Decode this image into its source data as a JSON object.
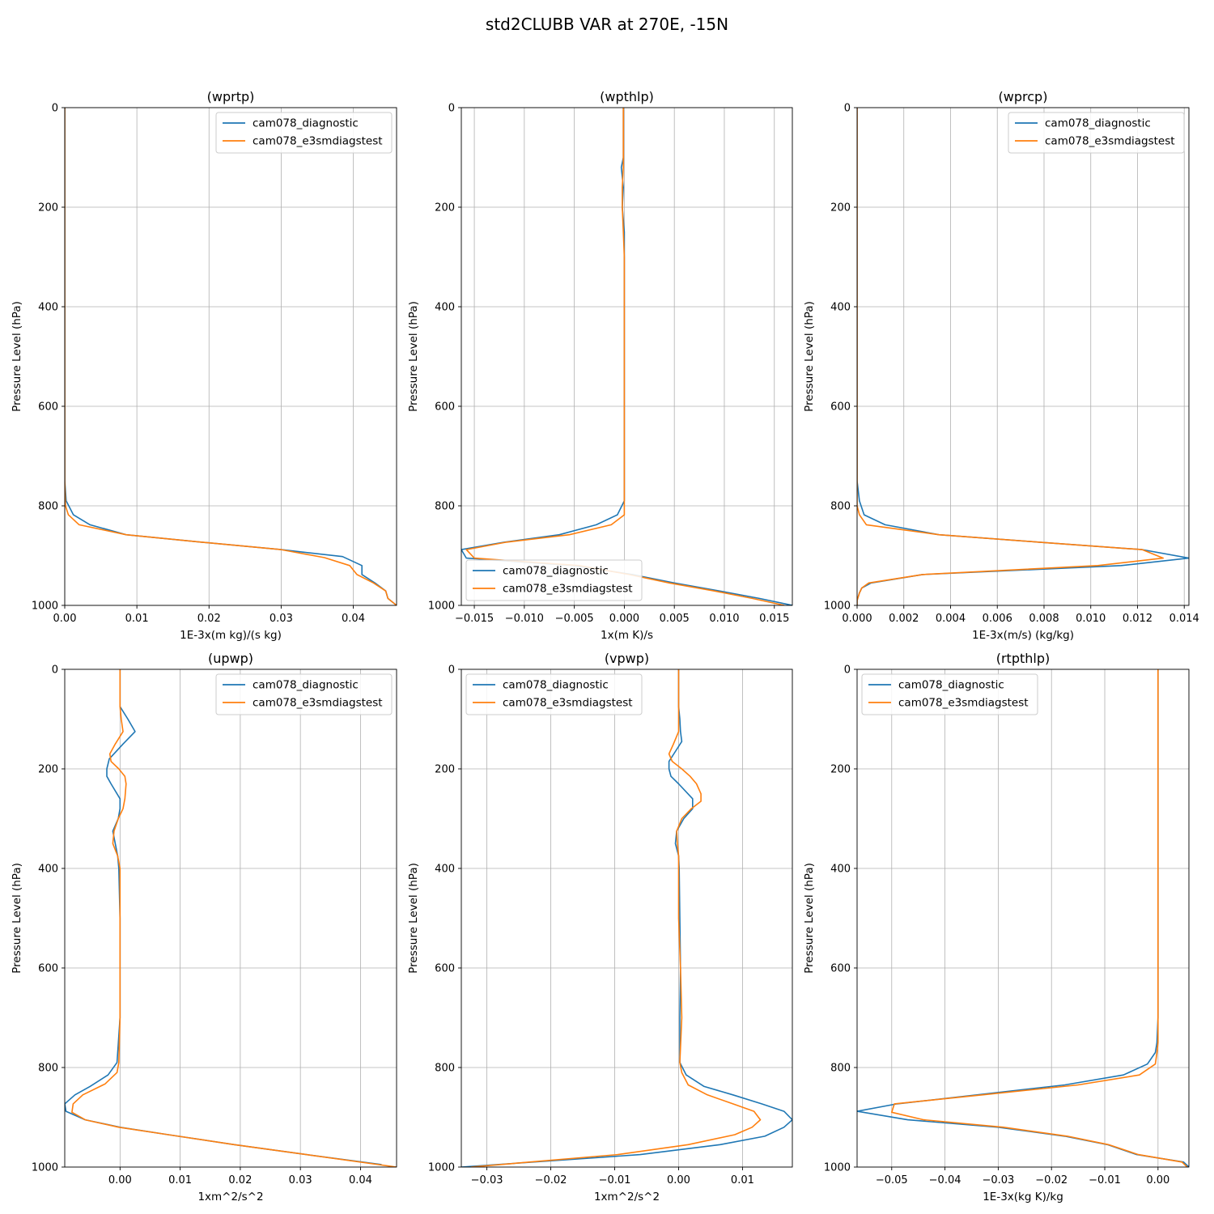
{
  "figure": {
    "title": "std2CLUBB VAR at 270E, -15N"
  },
  "colors": {
    "diagnostic": "#1f77b4",
    "e3smdiagstest": "#ff7f0e",
    "grid": "#b0b0b0"
  },
  "chart_data": [
    {
      "type": "line",
      "title": "(wprtp)",
      "xlabel": "1E-3x(m kg)/(s kg)",
      "ylabel": "Pressure Level (hPa)",
      "xlim": [
        0.0,
        0.046
      ],
      "ylim": [
        1000,
        0
      ],
      "xticks": [
        0.0,
        0.01,
        0.02,
        0.03,
        0.04
      ],
      "xtick_labels": [
        "0.00",
        "0.01",
        "0.02",
        "0.03",
        "0.04"
      ],
      "yticks": [
        0,
        200,
        400,
        600,
        800,
        1000
      ],
      "ytick_labels": [
        "0",
        "200",
        "400",
        "600",
        "800",
        "1000"
      ],
      "grid": true,
      "legend": "upper-right",
      "series": [
        {
          "name": "cam078_diagnostic",
          "color": "#1f77b4",
          "y": [
            0,
            100,
            300,
            600,
            750,
            790,
            818,
            838,
            858,
            873,
            888,
            902,
            920,
            938,
            955,
            971,
            986,
            1000
          ],
          "x": [
            0.0,
            0.0,
            0.0,
            0.0,
            0.0,
            0.0002,
            0.0012,
            0.0035,
            0.0085,
            0.019,
            0.03,
            0.0385,
            0.0412,
            0.0412,
            0.043,
            0.0445,
            0.0448,
            0.046
          ]
        },
        {
          "name": "cam078_e3smdiagstest",
          "color": "#ff7f0e",
          "y": [
            0,
            100,
            300,
            600,
            750,
            800,
            818,
            838,
            858,
            873,
            888,
            904,
            920,
            938,
            955,
            971,
            986,
            1000
          ],
          "x": [
            0.0,
            0.0,
            0.0,
            0.0,
            0.0,
            0.0001,
            0.0005,
            0.002,
            0.0085,
            0.019,
            0.03,
            0.036,
            0.0395,
            0.0405,
            0.0428,
            0.0445,
            0.0448,
            0.046
          ]
        }
      ]
    },
    {
      "type": "line",
      "title": "(wpthlp)",
      "xlabel": "1x(m K)/s",
      "ylabel": "Pressure Level (hPa)",
      "xlim": [
        -0.0163,
        0.0168
      ],
      "ylim": [
        1000,
        0
      ],
      "xticks": [
        -0.015,
        -0.01,
        -0.005,
        0.0,
        0.005,
        0.01,
        0.015
      ],
      "xtick_labels": [
        "−0.015",
        "−0.010",
        "−0.005",
        "0.000",
        "0.005",
        "0.010",
        "0.015"
      ],
      "yticks": [
        0,
        200,
        400,
        600,
        800,
        1000
      ],
      "ytick_labels": [
        "0",
        "200",
        "400",
        "600",
        "800",
        "1000"
      ],
      "grid": true,
      "legend": "lower-left",
      "series": [
        {
          "name": "cam078_diagnostic",
          "color": "#1f77b4",
          "y": [
            0,
            100,
            120,
            160,
            200,
            250,
            300,
            400,
            600,
            790,
            818,
            838,
            858,
            873,
            888,
            905,
            920,
            938,
            955,
            971,
            986,
            1000
          ],
          "x": [
            -0.0001,
            -0.0001,
            -0.0003,
            -0.0001,
            -0.0002,
            0.0,
            0.0,
            0.0,
            0.0,
            0.0,
            -0.0007,
            -0.0028,
            -0.0065,
            -0.012,
            -0.0163,
            -0.0158,
            -0.005,
            0.0008,
            0.005,
            0.0095,
            0.0135,
            0.0168
          ]
        },
        {
          "name": "cam078_e3smdiagstest",
          "color": "#ff7f0e",
          "y": [
            0,
            100,
            120,
            160,
            200,
            250,
            300,
            400,
            600,
            790,
            818,
            838,
            858,
            873,
            888,
            905,
            920,
            938,
            955,
            971,
            986,
            1000
          ],
          "x": [
            -0.0001,
            -0.0001,
            -0.0001,
            -0.0002,
            -0.0002,
            -0.0001,
            0.0,
            0.0,
            0.0,
            0.0,
            0.0,
            -0.0013,
            -0.0055,
            -0.0118,
            -0.0158,
            -0.015,
            -0.0045,
            0.0005,
            0.0045,
            0.009,
            0.0128,
            0.016
          ]
        }
      ]
    },
    {
      "type": "line",
      "title": "(wprcp)",
      "xlabel": "1E-3x(m/s) (kg/kg)",
      "ylabel": "Pressure Level (hPa)",
      "xlim": [
        0.0,
        0.0142
      ],
      "ylim": [
        1000,
        0
      ],
      "xticks": [
        0.0,
        0.002,
        0.004,
        0.006,
        0.008,
        0.01,
        0.012,
        0.014
      ],
      "xtick_labels": [
        "0.000",
        "0.002",
        "0.004",
        "0.006",
        "0.008",
        "0.010",
        "0.012",
        "0.014"
      ],
      "yticks": [
        0,
        200,
        400,
        600,
        800,
        1000
      ],
      "ytick_labels": [
        "0",
        "200",
        "400",
        "600",
        "800",
        "1000"
      ],
      "grid": true,
      "legend": "upper-right",
      "series": [
        {
          "name": "cam078_diagnostic",
          "color": "#1f77b4",
          "y": [
            0,
            300,
            600,
            750,
            790,
            818,
            838,
            858,
            873,
            888,
            905,
            920,
            938,
            955,
            965,
            975,
            990,
            1000
          ],
          "x": [
            0.0,
            0.0,
            0.0,
            0.0,
            0.0001,
            0.0003,
            0.0012,
            0.0035,
            0.0078,
            0.0122,
            0.0142,
            0.0113,
            0.0028,
            0.0006,
            0.0002,
            0.0001,
            0.0,
            0.0
          ]
        },
        {
          "name": "cam078_e3smdiagstest",
          "color": "#ff7f0e",
          "y": [
            0,
            300,
            600,
            750,
            800,
            818,
            838,
            858,
            873,
            888,
            905,
            920,
            938,
            955,
            965,
            975,
            990,
            1000
          ],
          "x": [
            0.0,
            0.0,
            0.0,
            0.0,
            0.0,
            0.0001,
            0.0004,
            0.0035,
            0.0078,
            0.0122,
            0.0131,
            0.0103,
            0.0028,
            0.0005,
            0.0002,
            0.0001,
            0.0,
            0.0
          ]
        }
      ]
    },
    {
      "type": "line",
      "title": "(upwp)",
      "xlabel": "1xm^2/s^2",
      "ylabel": "Pressure Level (hPa)",
      "xlim": [
        -0.0092,
        0.046
      ],
      "ylim": [
        1000,
        0
      ],
      "xticks": [
        0.0,
        0.01,
        0.02,
        0.03,
        0.04
      ],
      "xtick_labels": [
        "0.00",
        "0.01",
        "0.02",
        "0.03",
        "0.04"
      ],
      "yticks": [
        0,
        200,
        400,
        600,
        800,
        1000
      ],
      "ytick_labels": [
        "0",
        "200",
        "400",
        "600",
        "800",
        "1000"
      ],
      "grid": true,
      "legend": "upper-right",
      "series": [
        {
          "name": "cam078_diagnostic",
          "color": "#1f77b4",
          "y": [
            0,
            50,
            75,
            100,
            125,
            150,
            180,
            200,
            215,
            230,
            260,
            280,
            300,
            325,
            350,
            375,
            400,
            500,
            600,
            700,
            790,
            815,
            838,
            855,
            873,
            888,
            905,
            920,
            935,
            955,
            975,
            995
          ],
          "x": [
            0.0,
            0.0,
            0.0,
            0.0013,
            0.0025,
            0.0005,
            -0.0018,
            -0.0022,
            -0.0022,
            -0.0015,
            0.0,
            0.0,
            -0.0003,
            -0.0012,
            -0.0008,
            -0.0004,
            -0.0002,
            0.0,
            0.0,
            0.0,
            -0.0005,
            -0.002,
            -0.005,
            -0.0075,
            -0.0092,
            -0.009,
            -0.0058,
            0.0,
            0.008,
            0.019,
            0.031,
            0.0435
          ]
        },
        {
          "name": "cam078_e3smdiagstest",
          "color": "#ff7f0e",
          "y": [
            0,
            50,
            75,
            100,
            125,
            150,
            170,
            185,
            200,
            215,
            230,
            260,
            280,
            300,
            325,
            350,
            375,
            400,
            500,
            600,
            700,
            790,
            810,
            833,
            855,
            873,
            890,
            905,
            920,
            935,
            955,
            975,
            1000
          ],
          "x": [
            0.0,
            0.0,
            0.0,
            0.0002,
            0.0005,
            -0.0008,
            -0.0017,
            -0.0015,
            -0.0002,
            0.0008,
            0.001,
            0.0008,
            0.0005,
            -0.0003,
            -0.001,
            -0.0012,
            -0.0004,
            0.0,
            0.0,
            0.0,
            0.0,
            -0.0002,
            -0.0005,
            -0.0025,
            -0.0062,
            -0.0078,
            -0.008,
            -0.0058,
            -0.0002,
            0.008,
            0.019,
            0.031,
            0.046
          ]
        }
      ]
    },
    {
      "type": "line",
      "title": "(vpwp)",
      "xlabel": "1xm^2/s^2",
      "ylabel": "Pressure Level (hPa)",
      "xlim": [
        -0.034,
        0.0178
      ],
      "ylim": [
        1000,
        0
      ],
      "xticks": [
        -0.03,
        -0.02,
        -0.01,
        0.0,
        0.01
      ],
      "xtick_labels": [
        "−0.03",
        "−0.02",
        "−0.01",
        "0.00",
        "0.01"
      ],
      "yticks": [
        0,
        200,
        400,
        600,
        800,
        1000
      ],
      "ytick_labels": [
        "0",
        "200",
        "400",
        "600",
        "800",
        "1000"
      ],
      "grid": true,
      "legend": "upper-left",
      "series": [
        {
          "name": "cam078_diagnostic",
          "color": "#1f77b4",
          "y": [
            0,
            50,
            75,
            100,
            125,
            145,
            165,
            185,
            200,
            215,
            230,
            260,
            280,
            300,
            325,
            350,
            375,
            400,
            500,
            600,
            700,
            790,
            815,
            838,
            855,
            873,
            888,
            905,
            920,
            938,
            955,
            975,
            1000
          ],
          "x": [
            0.0,
            0.0,
            0.0,
            0.0002,
            0.0003,
            0.0005,
            -0.0005,
            -0.0015,
            -0.0015,
            -0.0012,
            0.0,
            0.0022,
            0.0022,
            0.0008,
            -0.0003,
            -0.0005,
            0.0,
            0.0001,
            0.0002,
            0.0003,
            0.0002,
            0.0002,
            0.0012,
            0.004,
            0.0085,
            0.013,
            0.0165,
            0.0178,
            0.0165,
            0.0135,
            0.0065,
            -0.006,
            -0.034
          ]
        },
        {
          "name": "cam078_e3smdiagstest",
          "color": "#ff7f0e",
          "y": [
            0,
            50,
            75,
            100,
            125,
            150,
            170,
            185,
            200,
            215,
            230,
            250,
            265,
            280,
            300,
            325,
            350,
            375,
            400,
            500,
            600,
            700,
            790,
            810,
            835,
            855,
            873,
            888,
            905,
            920,
            935,
            955,
            975,
            1000
          ],
          "x": [
            0.0,
            0.0,
            0.0,
            0.0,
            0.0,
            -0.0008,
            -0.0015,
            -0.001,
            0.0005,
            0.0018,
            0.0028,
            0.0035,
            0.0035,
            0.002,
            0.0005,
            -0.0003,
            -0.0002,
            0.0,
            0.0,
            0.0,
            0.0003,
            0.0005,
            0.0002,
            0.0005,
            0.0015,
            0.0045,
            0.0085,
            0.0118,
            0.0128,
            0.0115,
            0.0088,
            0.0015,
            -0.0095,
            -0.0325
          ]
        }
      ]
    },
    {
      "type": "line",
      "title": "(rtpthlp)",
      "xlabel": "1E-3x(kg K)/kg",
      "ylabel": "Pressure Level (hPa)",
      "xlim": [
        -0.0565,
        0.0058
      ],
      "ylim": [
        1000,
        0
      ],
      "xticks": [
        -0.05,
        -0.04,
        -0.03,
        -0.02,
        -0.01,
        0.0
      ],
      "xtick_labels": [
        "−0.05",
        "−0.04",
        "−0.03",
        "−0.02",
        "−0.01",
        "0.00"
      ],
      "yticks": [
        0,
        200,
        400,
        600,
        800,
        1000
      ],
      "ytick_labels": [
        "0",
        "200",
        "400",
        "600",
        "800",
        "1000"
      ],
      "grid": true,
      "legend": "upper-left",
      "series": [
        {
          "name": "cam078_diagnostic",
          "color": "#1f77b4",
          "y": [
            0,
            100,
            300,
            500,
            700,
            750,
            770,
            793,
            815,
            835,
            855,
            873,
            888,
            905,
            920,
            938,
            955,
            975,
            990,
            1000
          ],
          "x": [
            0.0,
            0.0,
            0.0,
            0.0,
            0.0,
            -0.0002,
            -0.0005,
            -0.002,
            -0.0065,
            -0.0175,
            -0.034,
            -0.049,
            -0.0565,
            -0.047,
            -0.03,
            -0.0175,
            -0.0095,
            -0.004,
            0.0048,
            0.0058
          ]
        },
        {
          "name": "cam078_e3smdiagstest",
          "color": "#ff7f0e",
          "y": [
            0,
            100,
            300,
            500,
            700,
            750,
            770,
            793,
            815,
            835,
            855,
            873,
            890,
            905,
            920,
            938,
            955,
            975,
            990,
            1000
          ],
          "x": [
            0.0,
            0.0,
            0.0,
            0.0,
            0.0,
            0.0,
            -0.0002,
            -0.0005,
            -0.0035,
            -0.015,
            -0.033,
            -0.0495,
            -0.05,
            -0.044,
            -0.029,
            -0.017,
            -0.0093,
            -0.0037,
            0.0045,
            0.0055
          ]
        }
      ]
    }
  ]
}
